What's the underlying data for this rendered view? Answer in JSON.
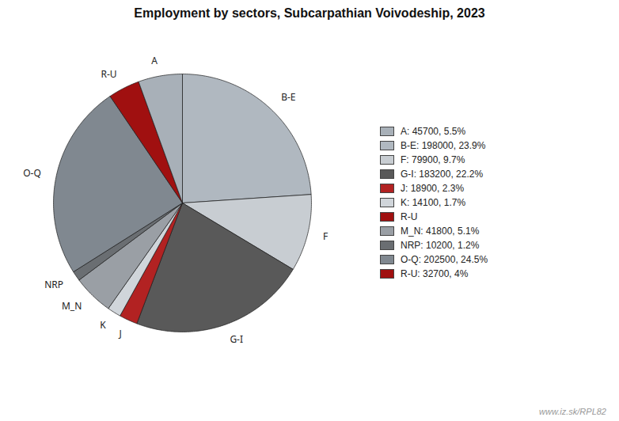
{
  "chart_data": {
    "type": "pie",
    "title": "Employment by sectors, Subcarpathian Voivodeship, 2023",
    "categories": [
      "B-E",
      "F",
      "G-I",
      "J",
      "K",
      "M_N",
      "NRP",
      "O-Q",
      "R-U",
      "A"
    ],
    "values": [
      198000,
      79900,
      183200,
      18900,
      14100,
      41800,
      10200,
      202500,
      32700,
      45700
    ],
    "colors": [
      "#b0b8c0",
      "#c8cdd2",
      "#595959",
      "#b22222",
      "#d0d5da",
      "#9a9fa5",
      "#6a6e72",
      "#808890",
      "#a01010",
      "#a8b0b8"
    ],
    "legend": "right",
    "legend_entries": [
      {
        "label": "A: 45700, 5.5%",
        "color": "#a8b0b8"
      },
      {
        "label": "B-E: 198000, 23.9%",
        "color": "#b0b8c0"
      },
      {
        "label": "F: 79900, 9.7%",
        "color": "#c8cdd2"
      },
      {
        "label": "G-I: 183200, 22.2%",
        "color": "#595959"
      },
      {
        "label": "J: 18900, 2.3%",
        "color": "#b22222"
      },
      {
        "label": "K: 14100, 1.7%",
        "color": "#d0d5da"
      },
      {
        "label": "R-U",
        "color": "#a01010"
      },
      {
        "label": "M_N: 41800, 5.1%",
        "color": "#9a9fa5"
      },
      {
        "label": "NRP: 10200, 1.2%",
        "color": "#6a6e72"
      },
      {
        "label": "O-Q: 202500, 24.5%",
        "color": "#808890"
      },
      {
        "label": "R-U: 32700, 4%",
        "color": "#a01010"
      }
    ],
    "annotation": "www.iz.sk/RPL82"
  }
}
